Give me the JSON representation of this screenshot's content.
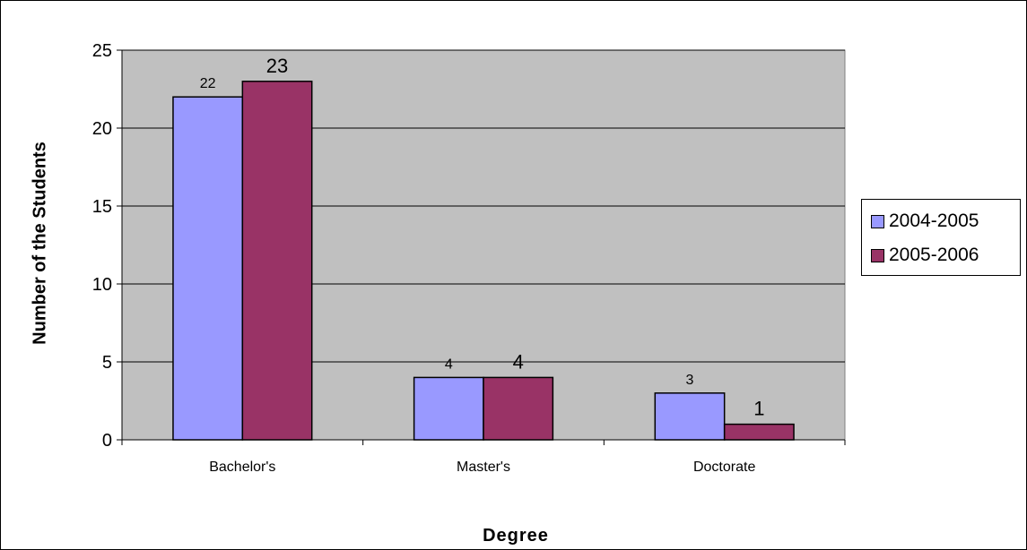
{
  "chart_data": {
    "type": "bar",
    "categories": [
      "Bachelor's",
      "Master's",
      "Doctorate"
    ],
    "series": [
      {
        "name": "2004-2005",
        "values": [
          22,
          4,
          3
        ],
        "color": "#9999FF"
      },
      {
        "name": "2005-2006",
        "values": [
          23,
          4,
          1
        ],
        "color": "#993366"
      }
    ],
    "title": "",
    "xlabel": "Degree",
    "ylabel": "Number of the Students",
    "ylim": [
      0,
      25
    ],
    "yticks": [
      0,
      5,
      10,
      15,
      20,
      25
    ],
    "grid": true,
    "legend_position": "right",
    "plot_background": "#C0C0C0"
  }
}
